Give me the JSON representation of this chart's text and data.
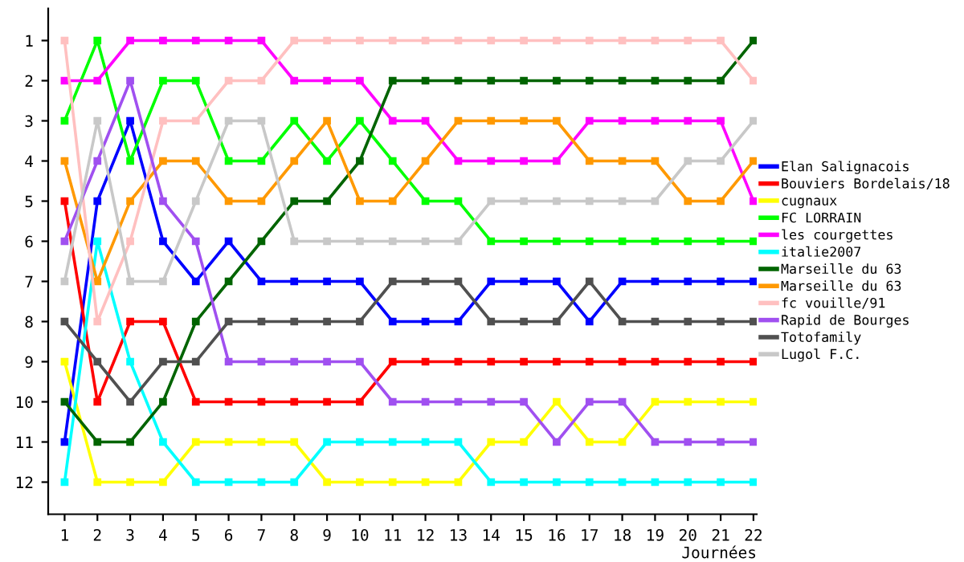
{
  "chart_data": {
    "type": "line",
    "xlabel": "Journées",
    "x": [
      1,
      2,
      3,
      4,
      5,
      6,
      7,
      8,
      9,
      10,
      11,
      12,
      13,
      14,
      15,
      16,
      17,
      18,
      19,
      20,
      21,
      22
    ],
    "xlim": [
      0.5,
      22.1
    ],
    "xticks": [
      1,
      2,
      3,
      4,
      5,
      6,
      7,
      8,
      9,
      10,
      11,
      12,
      13,
      14,
      15,
      16,
      17,
      18,
      19,
      20,
      21,
      22
    ],
    "ylim": [
      12.8,
      0.2
    ],
    "yticks": [
      1,
      2,
      3,
      4,
      5,
      6,
      7,
      8,
      9,
      10,
      11,
      12
    ],
    "grid": false,
    "legend": "right",
    "marker": "square",
    "line_style": "solid",
    "series": [
      {
        "name": "Elan Salignacois",
        "color": "#0000ff",
        "values": [
          11,
          5,
          3,
          6,
          7,
          6,
          7,
          7,
          7,
          7,
          8,
          8,
          8,
          7,
          7,
          7,
          8,
          7,
          7,
          7,
          7,
          7
        ]
      },
      {
        "name": "Bouviers Bordelais/18",
        "color": "#ff0000",
        "values": [
          5,
          10,
          8,
          8,
          10,
          10,
          10,
          10,
          10,
          10,
          9,
          9,
          9,
          9,
          9,
          9,
          9,
          9,
          9,
          9,
          9,
          9
        ]
      },
      {
        "name": "cugnaux",
        "color": "#ffff00",
        "values": [
          9,
          12,
          12,
          12,
          11,
          11,
          11,
          11,
          12,
          12,
          12,
          12,
          12,
          11,
          11,
          10,
          11,
          11,
          10,
          10,
          10,
          10
        ]
      },
      {
        "name": "FC LORRAIN",
        "color": "#00ff00",
        "values": [
          3,
          1,
          4,
          2,
          2,
          4,
          4,
          3,
          4,
          3,
          4,
          5,
          5,
          6,
          6,
          6,
          6,
          6,
          6,
          6,
          6,
          6
        ]
      },
      {
        "name": "les courgettes",
        "color": "#ff00ff",
        "values": [
          2,
          2,
          1,
          1,
          1,
          1,
          1,
          2,
          2,
          2,
          3,
          3,
          4,
          4,
          4,
          4,
          3,
          3,
          3,
          3,
          3,
          5
        ]
      },
      {
        "name": "italie2007",
        "color": "#00ffff",
        "values": [
          12,
          6,
          9,
          11,
          12,
          12,
          12,
          12,
          11,
          11,
          11,
          11,
          11,
          12,
          12,
          12,
          12,
          12,
          12,
          12,
          12,
          12
        ]
      },
      {
        "name": "Marseille du 63",
        "color": "#006400",
        "values": [
          10,
          11,
          11,
          10,
          8,
          7,
          6,
          5,
          5,
          4,
          2,
          2,
          2,
          2,
          2,
          2,
          2,
          2,
          2,
          2,
          2,
          1
        ]
      },
      {
        "name": "Marseille du 63",
        "color": "#ff9900",
        "values": [
          4,
          7,
          5,
          4,
          4,
          5,
          5,
          4,
          3,
          5,
          5,
          4,
          3,
          3,
          3,
          3,
          4,
          4,
          4,
          5,
          5,
          4
        ]
      },
      {
        "name": "fc vouille/91",
        "color": "#ffc0c0",
        "values": [
          1,
          8,
          6,
          3,
          3,
          2,
          2,
          1,
          1,
          1,
          1,
          1,
          1,
          1,
          1,
          1,
          1,
          1,
          1,
          1,
          1,
          2
        ]
      },
      {
        "name": "Rapid de Bourges",
        "color": "#a050f0",
        "values": [
          6,
          4,
          2,
          5,
          6,
          9,
          9,
          9,
          9,
          9,
          10,
          10,
          10,
          10,
          10,
          11,
          10,
          10,
          11,
          11,
          11,
          11
        ]
      },
      {
        "name": "Totofamily",
        "color": "#505050",
        "values": [
          8,
          9,
          10,
          9,
          9,
          8,
          8,
          8,
          8,
          8,
          7,
          7,
          7,
          8,
          8,
          8,
          7,
          8,
          8,
          8,
          8,
          8
        ]
      },
      {
        "name": "Lugol F.C.",
        "color": "#c8c8c8",
        "values": [
          7,
          3,
          7,
          7,
          5,
          3,
          3,
          6,
          6,
          6,
          6,
          6,
          6,
          5,
          5,
          5,
          5,
          5,
          5,
          4,
          4,
          3
        ]
      }
    ]
  }
}
